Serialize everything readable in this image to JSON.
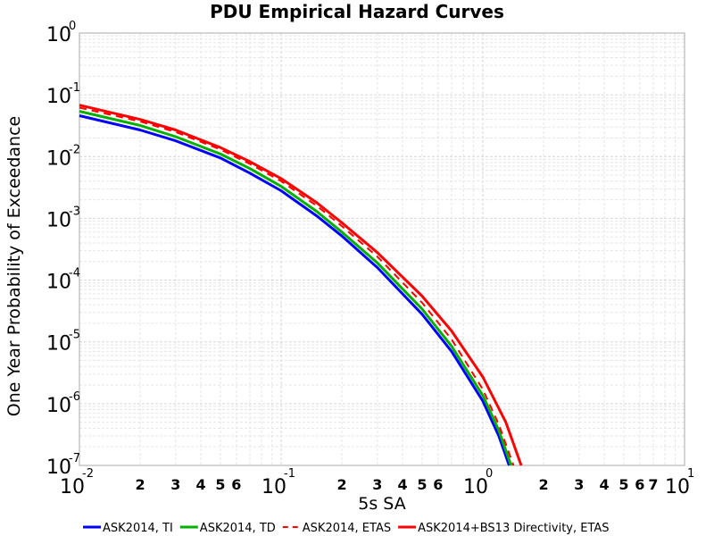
{
  "chart_data": {
    "type": "line",
    "title": "PDU Empirical Hazard Curves",
    "xlabel": "5s SA",
    "ylabel": "One Year Probability of Exceedance",
    "xscale": "log",
    "yscale": "log",
    "xlim": [
      0.01,
      10
    ],
    "ylim": [
      1e-07,
      1
    ],
    "grid": true,
    "legend_position": "bottom",
    "x_major_ticks": [
      {
        "base": "10",
        "exp": "-2"
      },
      {
        "base": "10",
        "exp": "-1"
      },
      {
        "base": "10",
        "exp": "0"
      },
      {
        "base": "10",
        "exp": "1"
      }
    ],
    "y_major_ticks": [
      {
        "base": "10",
        "exp": "0"
      },
      {
        "base": "10",
        "exp": "-1"
      },
      {
        "base": "10",
        "exp": "-2"
      },
      {
        "base": "10",
        "exp": "-3"
      },
      {
        "base": "10",
        "exp": "-4"
      },
      {
        "base": "10",
        "exp": "-5"
      },
      {
        "base": "10",
        "exp": "-6"
      },
      {
        "base": "10",
        "exp": "-7"
      }
    ],
    "x_minor_tick_labels": [
      "2",
      "3",
      "4",
      "5",
      "6"
    ],
    "x_minor_tick_labels_decade2": [
      "2",
      "3",
      "4",
      "5",
      "6",
      "7"
    ],
    "series": [
      {
        "name": "ASK2014, TI",
        "color": "#0000ff",
        "dash": "solid",
        "x": [
          0.01,
          0.02,
          0.03,
          0.05,
          0.07,
          0.1,
          0.15,
          0.2,
          0.3,
          0.5,
          0.7,
          1.0,
          1.2,
          1.35
        ],
        "y": [
          0.046,
          0.027,
          0.018,
          0.0095,
          0.0054,
          0.0028,
          0.0011,
          0.00052,
          0.00016,
          2.8e-05,
          7e-06,
          1.1e-06,
          3e-07,
          1e-07
        ]
      },
      {
        "name": "ASK2014, TD",
        "color": "#00b000",
        "dash": "solid",
        "x": [
          0.01,
          0.02,
          0.03,
          0.05,
          0.07,
          0.1,
          0.15,
          0.2,
          0.3,
          0.5,
          0.7,
          1.0,
          1.2,
          1.38
        ],
        "y": [
          0.054,
          0.032,
          0.021,
          0.011,
          0.0064,
          0.0033,
          0.0013,
          0.0006,
          0.00019,
          3.4e-05,
          8.5e-06,
          1.35e-06,
          3.7e-07,
          1e-07
        ]
      },
      {
        "name": "ASK2014, ETAS",
        "color": "#ff0000",
        "dash": "dashed",
        "x": [
          0.01,
          0.02,
          0.03,
          0.05,
          0.07,
          0.1,
          0.15,
          0.2,
          0.3,
          0.5,
          0.7,
          1.0,
          1.2,
          1.42
        ],
        "y": [
          0.062,
          0.037,
          0.025,
          0.013,
          0.0076,
          0.004,
          0.0016,
          0.00075,
          0.00024,
          4.3e-05,
          1.1e-05,
          1.7e-06,
          4.6e-07,
          1e-07
        ]
      },
      {
        "name": "ASK2014+BS13 Directivity, ETAS",
        "color": "#ff0000",
        "dash": "solid",
        "x": [
          0.01,
          0.02,
          0.03,
          0.05,
          0.07,
          0.1,
          0.15,
          0.2,
          0.3,
          0.5,
          0.7,
          1.0,
          1.3,
          1.55
        ],
        "y": [
          0.068,
          0.04,
          0.027,
          0.014,
          0.0083,
          0.0044,
          0.0018,
          0.00085,
          0.00028,
          5.5e-05,
          1.5e-05,
          2.7e-06,
          5e-07,
          1e-07
        ]
      }
    ]
  }
}
